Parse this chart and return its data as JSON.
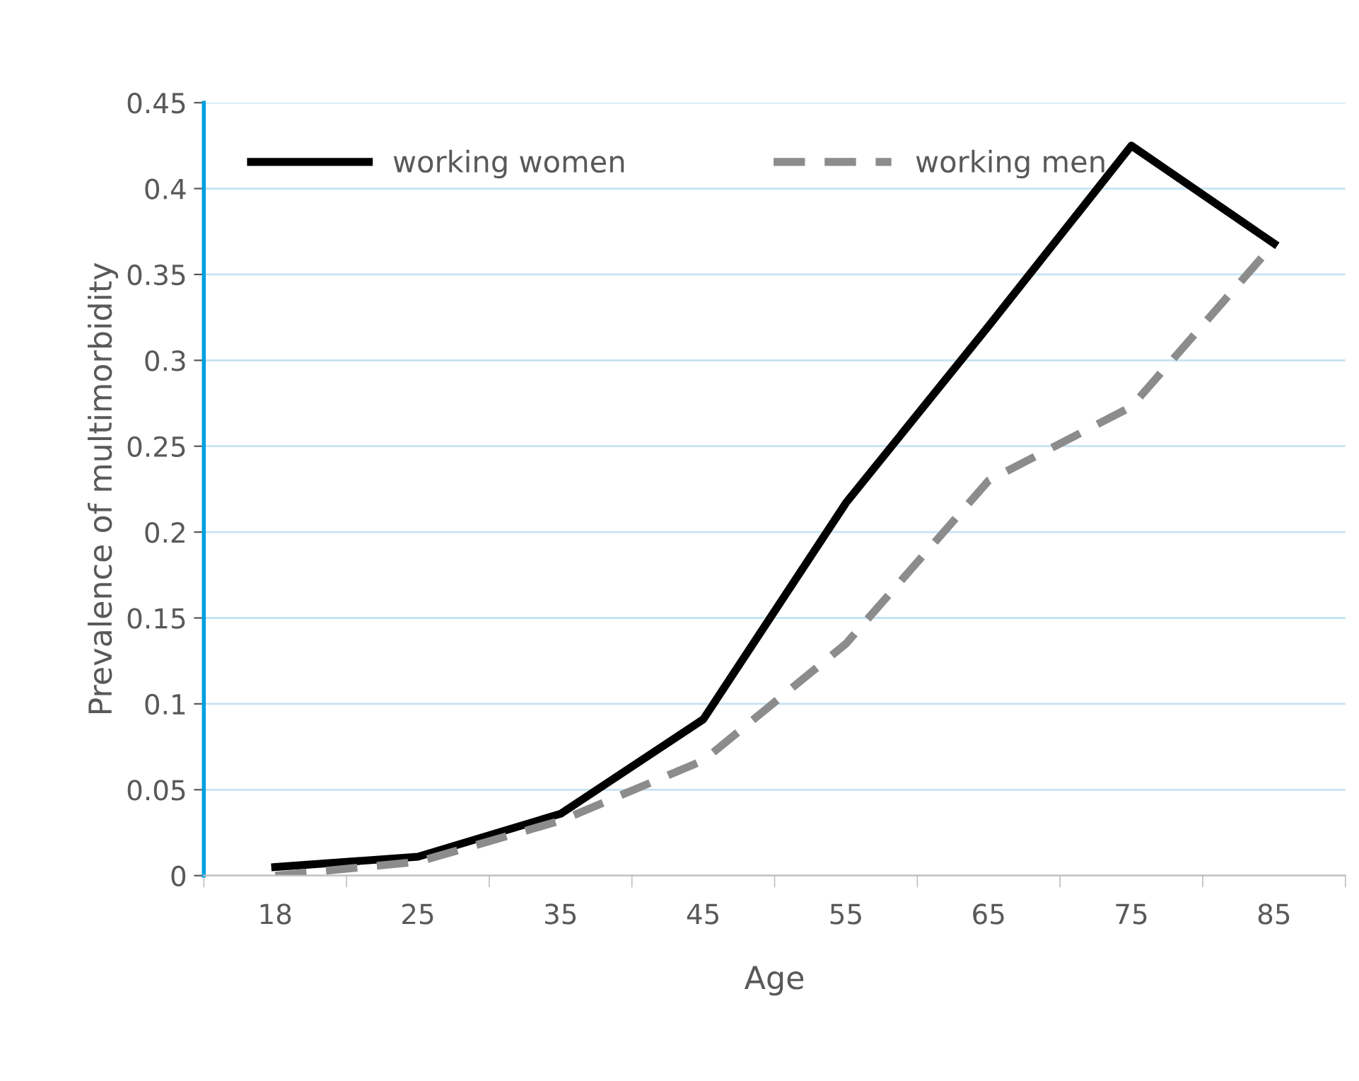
{
  "chart_data": {
    "type": "line",
    "xlabel": "Age",
    "ylabel": "Prevalence of multimorbidity",
    "categories": [
      "18",
      "25",
      "35",
      "45",
      "55",
      "65",
      "75",
      "85"
    ],
    "series": [
      {
        "name": "working women",
        "color": "#000000",
        "line_style": "solid",
        "values": [
          0.005,
          0.011,
          0.036,
          0.091,
          0.217,
          0.32,
          0.425,
          0.368
        ]
      },
      {
        "name": "working men",
        "color": "#8c8c8c",
        "line_style": "dashed",
        "values": [
          0.0,
          0.008,
          0.032,
          0.067,
          0.135,
          0.23,
          0.273,
          0.368
        ]
      }
    ],
    "ylim": [
      0,
      0.45
    ],
    "yticks": [
      {
        "value": 0,
        "label": "0"
      },
      0.05,
      0.1,
      0.15,
      0.2,
      0.25,
      0.3,
      0.35,
      0.4,
      0.45
    ],
    "grid": "y",
    "legend": "top left",
    "marker": "none"
  }
}
